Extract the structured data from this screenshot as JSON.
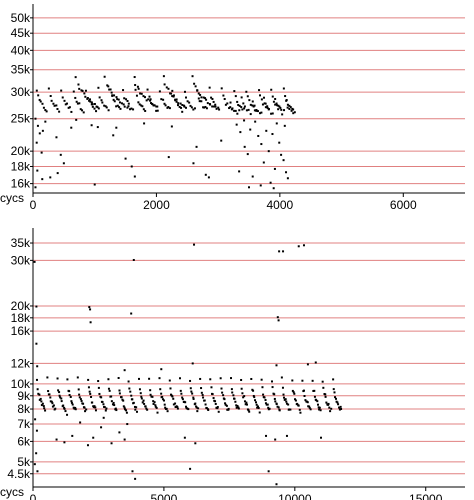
{
  "chart_data": [
    {
      "type": "scatter",
      "title": "",
      "xlabel": "cycs",
      "ylabel": "",
      "xlim": [
        0,
        7000
      ],
      "ylim": [
        15000,
        55000
      ],
      "yscale": "log",
      "grid": "horizontal lines at y ticks",
      "x_ticks": [
        0,
        2000,
        4000,
        6000
      ],
      "x_tick_labels": [
        "0",
        "2000",
        "4000",
        "6000"
      ],
      "y_ticks": [
        16000,
        18000,
        20000,
        25000,
        30000,
        35000,
        40000,
        45000,
        50000
      ],
      "y_tick_labels": [
        "16k",
        "18k",
        "20k",
        "25k",
        "30k",
        "35k",
        "40k",
        "45k",
        "50k"
      ],
      "series": [
        {
          "bands": [
            {
              "x_start": 60,
              "x_end": 4150,
              "period": 200,
              "y_high": 30500,
              "y_low": 26500,
              "n": 8,
              "jitter": 0.015
            },
            {
              "x_start": 700,
              "x_end": 2900,
              "period": 470,
              "y_high": 33500,
              "y_low": 27000,
              "n": 16,
              "jitter": 0.01
            },
            {
              "x_start": 3200,
              "x_end": 4100,
              "period": 180,
              "y_high": 28500,
              "y_low": 26000,
              "n": 6,
              "jitter": 0.02
            }
          ],
          "points": [
            {
              "x": 40,
              "y": 25000
            },
            {
              "x": 80,
              "y": 23800
            },
            {
              "x": 110,
              "y": 22600
            },
            {
              "x": 60,
              "y": 21200
            },
            {
              "x": 140,
              "y": 19800
            },
            {
              "x": 70,
              "y": 17500
            },
            {
              "x": 150,
              "y": 16500
            },
            {
              "x": 40,
              "y": 15600
            },
            {
              "x": 200,
              "y": 24500
            },
            {
              "x": 160,
              "y": 23000
            },
            {
              "x": 380,
              "y": 22000
            },
            {
              "x": 450,
              "y": 19500
            },
            {
              "x": 500,
              "y": 18400
            },
            {
              "x": 400,
              "y": 17200
            },
            {
              "x": 620,
              "y": 23500
            },
            {
              "x": 700,
              "y": 24800
            },
            {
              "x": 280,
              "y": 16700
            },
            {
              "x": 950,
              "y": 23900
            },
            {
              "x": 1050,
              "y": 23600
            },
            {
              "x": 1000,
              "y": 15900
            },
            {
              "x": 1300,
              "y": 22300
            },
            {
              "x": 1350,
              "y": 23500
            },
            {
              "x": 1500,
              "y": 19000
            },
            {
              "x": 1600,
              "y": 18000
            },
            {
              "x": 1650,
              "y": 16800
            },
            {
              "x": 1800,
              "y": 24200
            },
            {
              "x": 2200,
              "y": 19200
            },
            {
              "x": 2250,
              "y": 23700
            },
            {
              "x": 2600,
              "y": 18400
            },
            {
              "x": 2650,
              "y": 20600
            },
            {
              "x": 2800,
              "y": 17000
            },
            {
              "x": 2850,
              "y": 16700
            },
            {
              "x": 3050,
              "y": 21500
            },
            {
              "x": 3300,
              "y": 24000
            },
            {
              "x": 3360,
              "y": 22800
            },
            {
              "x": 3430,
              "y": 20600
            },
            {
              "x": 3480,
              "y": 19600
            },
            {
              "x": 3520,
              "y": 23200
            },
            {
              "x": 3560,
              "y": 16800
            },
            {
              "x": 3600,
              "y": 24500
            },
            {
              "x": 3650,
              "y": 22200
            },
            {
              "x": 3700,
              "y": 21000
            },
            {
              "x": 3740,
              "y": 18500
            },
            {
              "x": 3780,
              "y": 23000
            },
            {
              "x": 3820,
              "y": 20000
            },
            {
              "x": 3850,
              "y": 16100
            },
            {
              "x": 3880,
              "y": 22500
            },
            {
              "x": 3920,
              "y": 17700
            },
            {
              "x": 3950,
              "y": 24200
            },
            {
              "x": 3990,
              "y": 21200
            },
            {
              "x": 4020,
              "y": 19500
            },
            {
              "x": 4060,
              "y": 18800
            },
            {
              "x": 4100,
              "y": 17300
            },
            {
              "x": 4130,
              "y": 16600
            },
            {
              "x": 3500,
              "y": 15600
            },
            {
              "x": 3690,
              "y": 15800
            },
            {
              "x": 3900,
              "y": 15500
            },
            {
              "x": 3340,
              "y": 17400
            },
            {
              "x": 3420,
              "y": 24700
            },
            {
              "x": 4080,
              "y": 23800
            }
          ]
        }
      ]
    },
    {
      "type": "scatter",
      "title": "",
      "xlabel": "cycs",
      "ylabel": "",
      "xlim": [
        0,
        16500
      ],
      "ylim": [
        4000,
        40000
      ],
      "yscale": "log",
      "grid": "horizontal lines at y ticks",
      "x_ticks": [
        0,
        5000,
        10000,
        15000
      ],
      "x_tick_labels": [
        "0",
        "5000",
        "10000",
        "15000"
      ],
      "y_ticks": [
        4500,
        5000,
        6000,
        7000,
        8000,
        9000,
        10000,
        12000,
        16000,
        18000,
        20000,
        30000,
        35000
      ],
      "y_tick_labels": [
        "4.5k",
        "5k",
        "6k",
        "7k",
        "8k",
        "9k",
        "10k",
        "12k",
        "16k",
        "18k",
        "20k",
        "30k",
        "35k"
      ],
      "series": [
        {
          "bands": [
            {
              "x_start": 150,
              "x_end": 11800,
              "period": 390,
              "y_high": 10400,
              "y_low": 7900,
              "n": 12,
              "jitter": 0.02
            }
          ],
          "points": [
            {
              "x": 60,
              "y": 29600
            },
            {
              "x": 130,
              "y": 19900
            },
            {
              "x": 160,
              "y": 11700
            },
            {
              "x": 130,
              "y": 14300
            },
            {
              "x": 2150,
              "y": 19800
            },
            {
              "x": 2180,
              "y": 19400
            },
            {
              "x": 2200,
              "y": 17300
            },
            {
              "x": 3750,
              "y": 18700
            },
            {
              "x": 3850,
              "y": 30100
            },
            {
              "x": 6150,
              "y": 34500
            },
            {
              "x": 9400,
              "y": 32500
            },
            {
              "x": 9550,
              "y": 32500
            },
            {
              "x": 10150,
              "y": 34000
            },
            {
              "x": 10350,
              "y": 34300
            },
            {
              "x": 9350,
              "y": 18100
            },
            {
              "x": 9380,
              "y": 17600
            },
            {
              "x": 80,
              "y": 7300
            },
            {
              "x": 150,
              "y": 6600
            },
            {
              "x": 120,
              "y": 5400
            },
            {
              "x": 70,
              "y": 4900
            },
            {
              "x": 170,
              "y": 4600
            },
            {
              "x": 900,
              "y": 6100
            },
            {
              "x": 1200,
              "y": 5950
            },
            {
              "x": 1500,
              "y": 6300
            },
            {
              "x": 1800,
              "y": 7100
            },
            {
              "x": 2100,
              "y": 5800
            },
            {
              "x": 2300,
              "y": 6200
            },
            {
              "x": 2600,
              "y": 6800
            },
            {
              "x": 3000,
              "y": 5900
            },
            {
              "x": 3300,
              "y": 6500
            },
            {
              "x": 3500,
              "y": 6100
            },
            {
              "x": 3600,
              "y": 7000
            },
            {
              "x": 3800,
              "y": 4600
            },
            {
              "x": 3900,
              "y": 4300
            },
            {
              "x": 5800,
              "y": 6200
            },
            {
              "x": 6000,
              "y": 4700
            },
            {
              "x": 6200,
              "y": 5900
            },
            {
              "x": 8900,
              "y": 6300
            },
            {
              "x": 9000,
              "y": 4600
            },
            {
              "x": 9250,
              "y": 6100
            },
            {
              "x": 9300,
              "y": 4100
            },
            {
              "x": 9700,
              "y": 6300
            },
            {
              "x": 11000,
              "y": 6200
            },
            {
              "x": 10800,
              "y": 12100
            },
            {
              "x": 10500,
              "y": 11900
            },
            {
              "x": 9300,
              "y": 11800
            },
            {
              "x": 6100,
              "y": 12000
            },
            {
              "x": 3500,
              "y": 11300
            },
            {
              "x": 1300,
              "y": 7600
            },
            {
              "x": 2700,
              "y": 7400
            },
            {
              "x": 4900,
              "y": 11400
            }
          ]
        }
      ]
    }
  ]
}
